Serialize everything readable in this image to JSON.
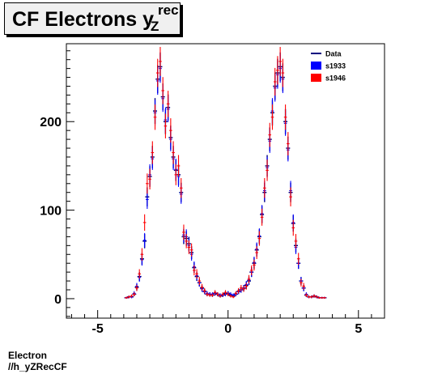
{
  "title": {
    "main": "CF Electrons y",
    "sup": "rec",
    "sub": "Z"
  },
  "footer": {
    "line1": "Electron",
    "line2": "//h_yZRecCF"
  },
  "chart_data": {
    "type": "scatter",
    "title": "CF Electrons y_Z^rec",
    "xlim": [
      -6.2,
      6.0
    ],
    "ylim": [
      -22,
      288
    ],
    "x_ticks": [
      -5,
      0,
      5
    ],
    "y_ticks": [
      0,
      100,
      200
    ],
    "legend_position": "top-right",
    "grid": false,
    "series": [
      {
        "name": "Data",
        "color": "#00007f",
        "style": "errorbar",
        "x": [
          -3.9,
          -3.8,
          -3.7,
          -3.6,
          -3.5,
          -3.4,
          -3.3,
          -3.2,
          -3.1,
          -3.0,
          -2.9,
          -2.8,
          -2.7,
          -2.6,
          -2.5,
          -2.4,
          -2.3,
          -2.2,
          -2.1,
          -2.0,
          -1.9,
          -1.8,
          -1.7,
          -1.6,
          -1.5,
          -1.4,
          -1.3,
          -1.2,
          -1.1,
          -1.0,
          -0.9,
          -0.8,
          -0.7,
          -0.6,
          -0.5,
          -0.4,
          -0.3,
          -0.2,
          -0.1,
          0.0,
          0.1,
          0.2,
          0.3,
          0.4,
          0.5,
          0.6,
          0.7,
          0.8,
          0.9,
          1.0,
          1.1,
          1.2,
          1.3,
          1.4,
          1.5,
          1.6,
          1.7,
          1.8,
          1.9,
          2.0,
          2.1,
          2.2,
          2.3,
          2.4,
          2.5,
          2.6,
          2.7,
          2.8,
          2.9,
          3.0,
          3.1,
          3.2,
          3.3,
          3.4,
          3.5,
          3.6,
          3.7
        ],
        "y": [
          1,
          2,
          2,
          5,
          13,
          25,
          45,
          65,
          115,
          138,
          160,
          212,
          248,
          262,
          228,
          200,
          216,
          182,
          160,
          145,
          140,
          120,
          70,
          68,
          62,
          52,
          35,
          25,
          18,
          12,
          8,
          5,
          5,
          4,
          6,
          5,
          3,
          4,
          6,
          6,
          4,
          3,
          5,
          8,
          10,
          12,
          15,
          20,
          30,
          40,
          55,
          70,
          95,
          120,
          150,
          180,
          210,
          240,
          255,
          262,
          250,
          200,
          170,
          120,
          85,
          60,
          40,
          20,
          12,
          4,
          2,
          2,
          3,
          2,
          1,
          1,
          1
        ]
      },
      {
        "name": "s1933",
        "color": "#0000ff",
        "style": "box",
        "x": [
          -3.9,
          -3.8,
          -3.7,
          -3.6,
          -3.5,
          -3.4,
          -3.3,
          -3.2,
          -3.1,
          -3.0,
          -2.9,
          -2.8,
          -2.7,
          -2.6,
          -2.5,
          -2.4,
          -2.3,
          -2.2,
          -2.1,
          -2.0,
          -1.9,
          -1.8,
          -1.7,
          -1.6,
          -1.5,
          -1.4,
          -1.3,
          -1.2,
          -1.1,
          -1.0,
          -0.9,
          -0.8,
          -0.7,
          -0.6,
          -0.5,
          -0.4,
          -0.3,
          -0.2,
          -0.1,
          0.0,
          0.1,
          0.2,
          0.3,
          0.4,
          0.5,
          0.6,
          0.7,
          0.8,
          0.9,
          1.0,
          1.1,
          1.2,
          1.3,
          1.4,
          1.5,
          1.6,
          1.7,
          1.8,
          1.9,
          2.0,
          2.1,
          2.2,
          2.3,
          2.4,
          2.5,
          2.6,
          2.7,
          2.8,
          2.9,
          3.0,
          3.1,
          3.2,
          3.3,
          3.4,
          3.5,
          3.6,
          3.7
        ],
        "y": [
          1,
          2,
          2,
          6,
          14,
          24,
          44,
          66,
          112,
          140,
          158,
          210,
          246,
          260,
          226,
          202,
          214,
          180,
          158,
          146,
          138,
          118,
          72,
          70,
          60,
          50,
          36,
          26,
          18,
          11,
          8,
          6,
          5,
          5,
          6,
          5,
          4,
          4,
          5,
          6,
          5,
          4,
          5,
          8,
          10,
          12,
          16,
          21,
          30,
          41,
          56,
          71,
          96,
          122,
          148,
          178,
          212,
          238,
          253,
          260,
          248,
          198,
          168,
          122,
          86,
          58,
          40,
          20,
          12,
          5,
          2,
          2,
          3,
          2,
          1,
          1,
          1
        ]
      },
      {
        "name": "s1946",
        "color": "#ff0000",
        "style": "box",
        "x": [
          -3.9,
          -3.8,
          -3.7,
          -3.6,
          -3.5,
          -3.4,
          -3.3,
          -3.2,
          -3.1,
          -3.0,
          -2.9,
          -2.8,
          -2.7,
          -2.6,
          -2.5,
          -2.4,
          -2.3,
          -2.2,
          -2.1,
          -2.0,
          -1.9,
          -1.8,
          -1.7,
          -1.6,
          -1.5,
          -1.4,
          -1.3,
          -1.2,
          -1.1,
          -1.0,
          -0.9,
          -0.8,
          -0.7,
          -0.6,
          -0.5,
          -0.4,
          -0.3,
          -0.2,
          -0.1,
          0.0,
          0.1,
          0.2,
          0.3,
          0.4,
          0.5,
          0.6,
          0.7,
          0.8,
          0.9,
          1.0,
          1.1,
          1.2,
          1.3,
          1.4,
          1.5,
          1.6,
          1.7,
          1.8,
          1.9,
          2.0,
          2.1,
          2.2,
          2.3,
          2.4,
          2.5,
          2.6,
          2.7,
          2.8,
          2.9,
          3.0,
          3.1,
          3.2,
          3.3,
          3.4,
          3.5,
          3.6,
          3.7
        ],
        "y": [
          1,
          2,
          3,
          5,
          12,
          28,
          50,
          86,
          130,
          135,
          165,
          205,
          255,
          268,
          235,
          195,
          220,
          190,
          165,
          140,
          150,
          125,
          75,
          65,
          58,
          55,
          32,
          28,
          20,
          13,
          9,
          5,
          4,
          4,
          7,
          5,
          3,
          5,
          7,
          5,
          3,
          2,
          6,
          9,
          12,
          11,
          14,
          22,
          32,
          38,
          52,
          68,
          92,
          125,
          145,
          185,
          205,
          245,
          258,
          268,
          255,
          205,
          175,
          115,
          80,
          65,
          45,
          18,
          14,
          4,
          2,
          2,
          3,
          2,
          1,
          1,
          1
        ]
      }
    ]
  }
}
